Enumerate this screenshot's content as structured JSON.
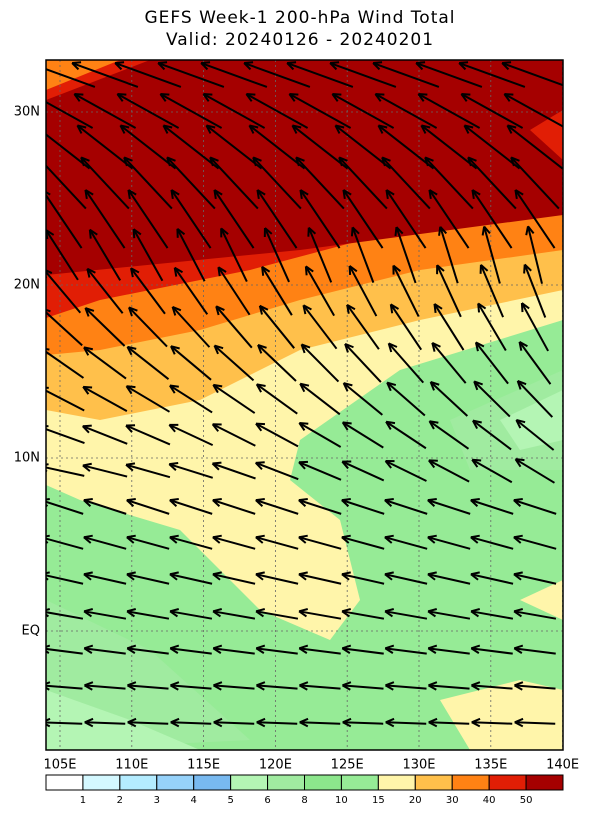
{
  "header": {
    "title": "GEFS Week-1 200-hPa Wind Total",
    "subtitle": "Valid: 20240126 - 20240201"
  },
  "map": {
    "lat_labels": [
      "30N",
      "20N",
      "10N",
      "EQ"
    ],
    "lon_labels": [
      "105E",
      "110E",
      "115E",
      "120E",
      "125E",
      "130E",
      "135E",
      "140E"
    ]
  },
  "colorbar": {
    "colors": [
      "#ffffff",
      "#d4f8ff",
      "#b4ecff",
      "#96d2fa",
      "#78b9f0",
      "#b4f5b4",
      "#a0eba0",
      "#8ce68c",
      "#96eb96",
      "#fff5aa",
      "#ffc04b",
      "#ff8214",
      "#e11e05",
      "#a50000"
    ],
    "labels": [
      1,
      2,
      3,
      4,
      5,
      6,
      8,
      10,
      15,
      20,
      30,
      40,
      50
    ]
  }
}
